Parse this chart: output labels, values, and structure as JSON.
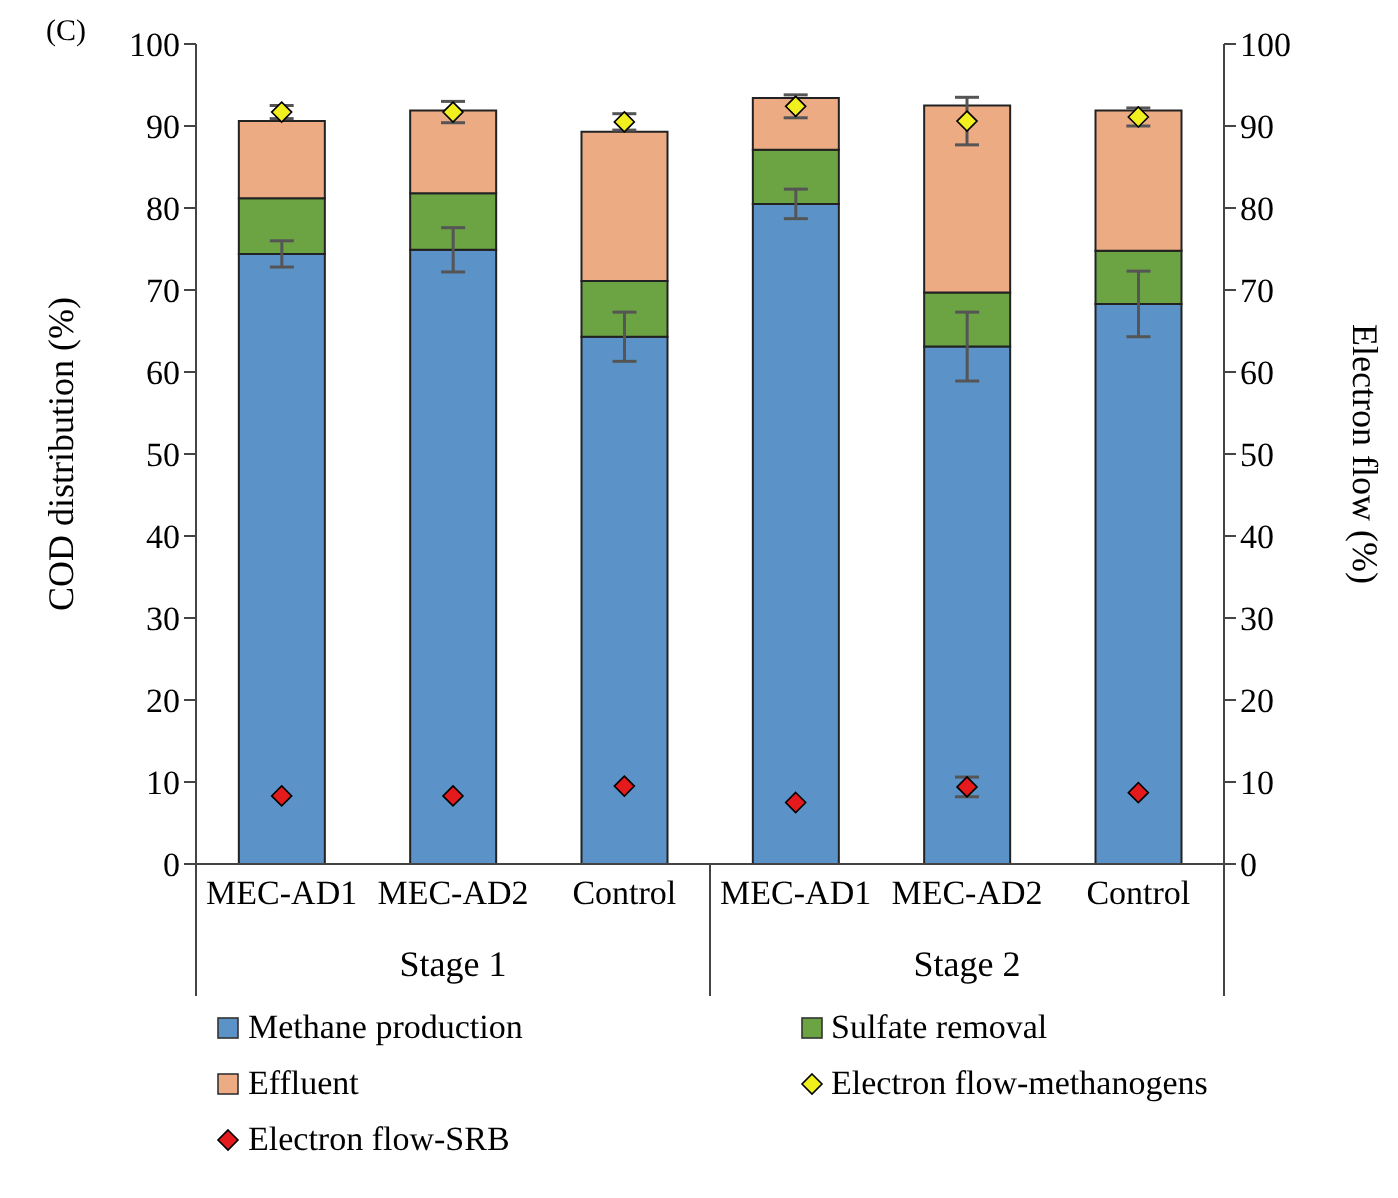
{
  "chart_data": {
    "type": "bar",
    "title": "(C)",
    "ylabel": "COD distribution (%)",
    "y2label": "Electron flow (%)",
    "categories": [
      "MEC-AD1",
      "MEC-AD2",
      "Control",
      "MEC-AD1",
      "MEC-AD2",
      "Control"
    ],
    "annotations": [
      "Stage 1",
      "Stage 2"
    ],
    "stacked": true,
    "series": [
      {
        "name": "Methane production",
        "color": "#5b93c8",
        "values": [
          74.4,
          74.9,
          64.3,
          80.5,
          63.1,
          68.3
        ],
        "errors": [
          1.6,
          2.7,
          3.0,
          1.8,
          4.2,
          4.0
        ]
      },
      {
        "name": "Sulfate removal",
        "color": "#6ca444",
        "values": [
          6.8,
          6.9,
          6.8,
          6.6,
          6.6,
          6.5
        ]
      },
      {
        "name": "Effluent",
        "color": "#edab84",
        "values": [
          9.4,
          10.1,
          18.2,
          6.3,
          22.8,
          17.1
        ]
      },
      {
        "name": "Electron flow-methanogens",
        "type": "scatter",
        "axis": "y2",
        "marker": "diamond",
        "color": "#f2ef1e",
        "values": [
          91.7,
          91.7,
          90.5,
          92.4,
          90.6,
          91.1
        ],
        "errors": [
          0.8,
          1.3,
          1.0,
          1.4,
          2.9,
          1.1
        ]
      },
      {
        "name": "Electron flow-SRB",
        "type": "scatter",
        "axis": "y2",
        "marker": "diamond",
        "color": "#e41a1c",
        "values": [
          8.3,
          8.3,
          9.5,
          7.5,
          9.4,
          8.7
        ],
        "errors": [
          null,
          null,
          null,
          null,
          1.2,
          null
        ]
      }
    ],
    "ylim": [
      0,
      100
    ],
    "yticks": [
      0,
      10,
      20,
      30,
      40,
      50,
      60,
      70,
      80,
      90,
      100
    ],
    "y2lim": [
      0,
      100
    ],
    "y2ticks": [
      0,
      10,
      20,
      30,
      40,
      50,
      60,
      70,
      80,
      90,
      100
    ],
    "grid": false,
    "legend": "bottom"
  }
}
